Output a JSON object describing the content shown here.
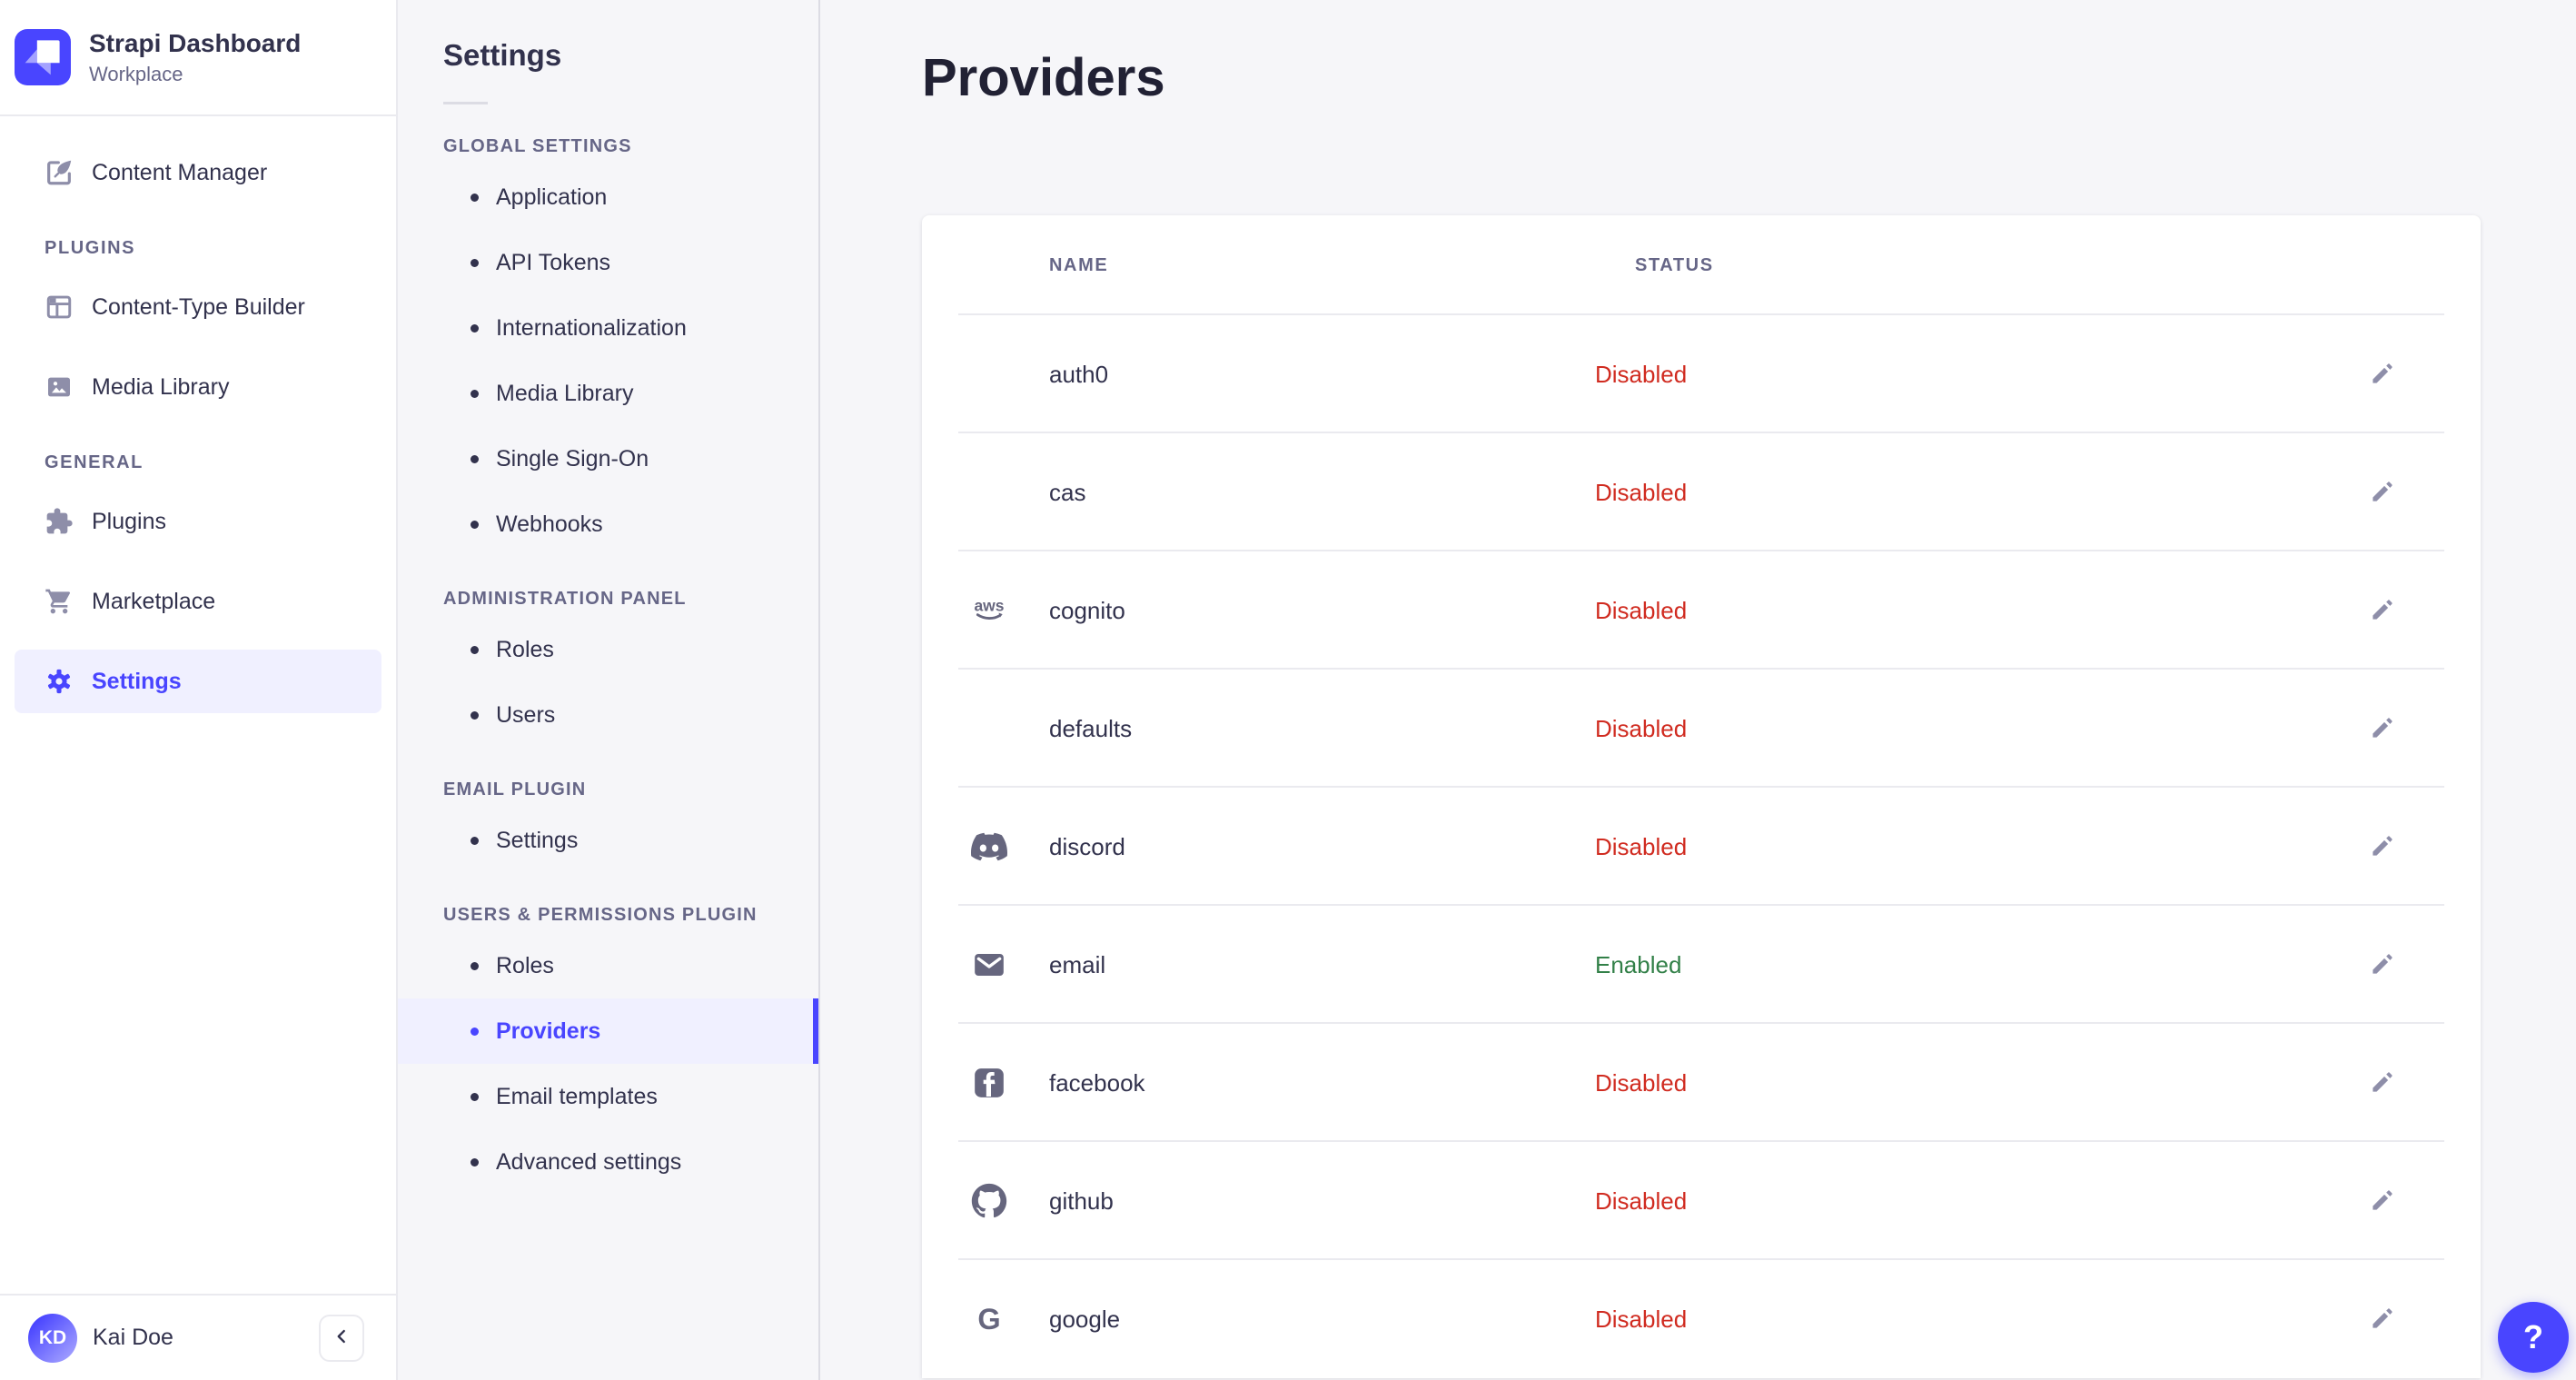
{
  "colors": {
    "primary": "#4945FF",
    "danger": "#D02B20",
    "success": "#328048",
    "selected_bg": "#F0F0FF",
    "icon_gray": "#8E8EA9",
    "icon_slate": "#66667E"
  },
  "sidebar": {
    "brand": {
      "title": "Strapi Dashboard",
      "subtitle": "Workplace",
      "logo_icon": "strapi-logo"
    },
    "items_top": [
      {
        "label": "Content Manager",
        "icon": "content-manager",
        "selected": false
      }
    ],
    "sections": [
      {
        "header": "PLUGINS",
        "items": [
          {
            "label": "Content-Type Builder",
            "icon": "content-type-builder",
            "selected": false
          },
          {
            "label": "Media Library",
            "icon": "media-library",
            "selected": false
          }
        ]
      },
      {
        "header": "GENERAL",
        "items": [
          {
            "label": "Plugins",
            "icon": "plugins",
            "selected": false
          },
          {
            "label": "Marketplace",
            "icon": "marketplace",
            "selected": false
          },
          {
            "label": "Settings",
            "icon": "settings",
            "selected": true
          }
        ]
      }
    ],
    "footer": {
      "user": "Kai Doe",
      "initials": "KD",
      "collapse_icon": "chevron-left"
    }
  },
  "settings_nav": {
    "title": "Settings",
    "sections": [
      {
        "header": "GLOBAL SETTINGS",
        "items": [
          {
            "label": "Application",
            "selected": false
          },
          {
            "label": "API Tokens",
            "selected": false
          },
          {
            "label": "Internationalization",
            "selected": false
          },
          {
            "label": "Media Library",
            "selected": false
          },
          {
            "label": "Single Sign-On",
            "selected": false
          },
          {
            "label": "Webhooks",
            "selected": false
          }
        ]
      },
      {
        "header": "ADMINISTRATION PANEL",
        "items": [
          {
            "label": "Roles",
            "selected": false
          },
          {
            "label": "Users",
            "selected": false
          }
        ]
      },
      {
        "header": "EMAIL PLUGIN",
        "items": [
          {
            "label": "Settings",
            "selected": false
          }
        ]
      },
      {
        "header": "USERS & PERMISSIONS PLUGIN",
        "items": [
          {
            "label": "Roles",
            "selected": false
          },
          {
            "label": "Providers",
            "selected": true
          },
          {
            "label": "Email templates",
            "selected": false
          },
          {
            "label": "Advanced settings",
            "selected": false
          }
        ]
      }
    ]
  },
  "main": {
    "title": "Providers",
    "table": {
      "columns": [
        "NAME",
        "STATUS"
      ],
      "rows": [
        {
          "name": "auth0",
          "status": "Disabled",
          "icon": null
        },
        {
          "name": "cas",
          "status": "Disabled",
          "icon": null
        },
        {
          "name": "cognito",
          "status": "Disabled",
          "icon": "aws"
        },
        {
          "name": "defaults",
          "status": "Disabled",
          "icon": null
        },
        {
          "name": "discord",
          "status": "Disabled",
          "icon": "discord"
        },
        {
          "name": "email",
          "status": "Enabled",
          "icon": "email"
        },
        {
          "name": "facebook",
          "status": "Disabled",
          "icon": "facebook"
        },
        {
          "name": "github",
          "status": "Disabled",
          "icon": "github"
        },
        {
          "name": "google",
          "status": "Disabled",
          "icon": "google"
        }
      ],
      "edit_icon": "pencil"
    }
  },
  "help_button": {
    "label": "?"
  }
}
